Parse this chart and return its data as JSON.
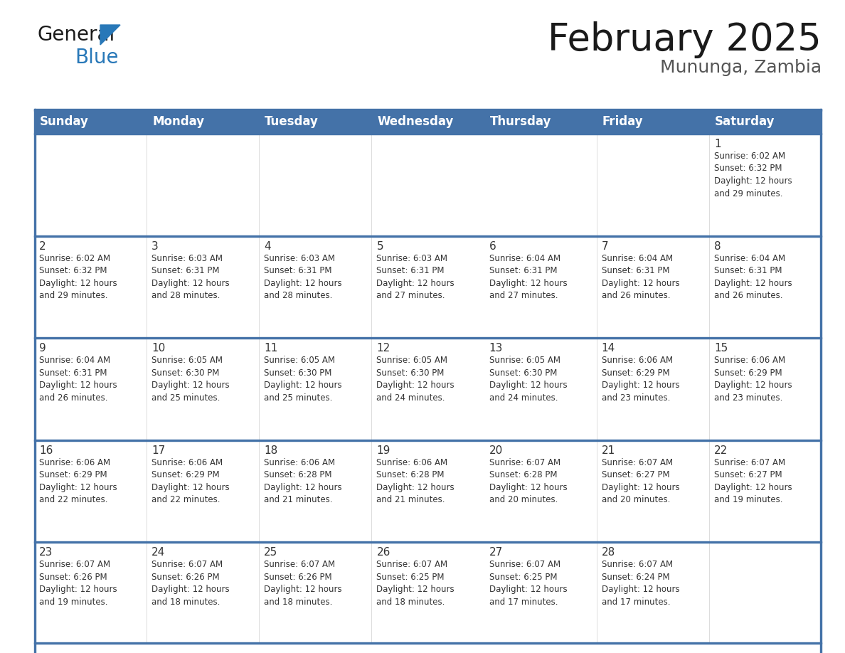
{
  "title": "February 2025",
  "subtitle": "Mununga, Zambia",
  "header_bg": "#4472A8",
  "header_text_color": "#FFFFFF",
  "cell_bg": "#FFFFFF",
  "row_sep_color": "#4472A8",
  "col_sep_color": "#CCCCCC",
  "text_color": "#333333",
  "days_of_week": [
    "Sunday",
    "Monday",
    "Tuesday",
    "Wednesday",
    "Thursday",
    "Friday",
    "Saturday"
  ],
  "calendar_data": [
    [
      null,
      null,
      null,
      null,
      null,
      null,
      {
        "day": "1",
        "sunrise": "6:02 AM",
        "sunset": "6:32 PM",
        "daylight": "12 hours\nand 29 minutes."
      }
    ],
    [
      {
        "day": "2",
        "sunrise": "6:02 AM",
        "sunset": "6:32 PM",
        "daylight": "12 hours\nand 29 minutes."
      },
      {
        "day": "3",
        "sunrise": "6:03 AM",
        "sunset": "6:31 PM",
        "daylight": "12 hours\nand 28 minutes."
      },
      {
        "day": "4",
        "sunrise": "6:03 AM",
        "sunset": "6:31 PM",
        "daylight": "12 hours\nand 28 minutes."
      },
      {
        "day": "5",
        "sunrise": "6:03 AM",
        "sunset": "6:31 PM",
        "daylight": "12 hours\nand 27 minutes."
      },
      {
        "day": "6",
        "sunrise": "6:04 AM",
        "sunset": "6:31 PM",
        "daylight": "12 hours\nand 27 minutes."
      },
      {
        "day": "7",
        "sunrise": "6:04 AM",
        "sunset": "6:31 PM",
        "daylight": "12 hours\nand 26 minutes."
      },
      {
        "day": "8",
        "sunrise": "6:04 AM",
        "sunset": "6:31 PM",
        "daylight": "12 hours\nand 26 minutes."
      }
    ],
    [
      {
        "day": "9",
        "sunrise": "6:04 AM",
        "sunset": "6:31 PM",
        "daylight": "12 hours\nand 26 minutes."
      },
      {
        "day": "10",
        "sunrise": "6:05 AM",
        "sunset": "6:30 PM",
        "daylight": "12 hours\nand 25 minutes."
      },
      {
        "day": "11",
        "sunrise": "6:05 AM",
        "sunset": "6:30 PM",
        "daylight": "12 hours\nand 25 minutes."
      },
      {
        "day": "12",
        "sunrise": "6:05 AM",
        "sunset": "6:30 PM",
        "daylight": "12 hours\nand 24 minutes."
      },
      {
        "day": "13",
        "sunrise": "6:05 AM",
        "sunset": "6:30 PM",
        "daylight": "12 hours\nand 24 minutes."
      },
      {
        "day": "14",
        "sunrise": "6:06 AM",
        "sunset": "6:29 PM",
        "daylight": "12 hours\nand 23 minutes."
      },
      {
        "day": "15",
        "sunrise": "6:06 AM",
        "sunset": "6:29 PM",
        "daylight": "12 hours\nand 23 minutes."
      }
    ],
    [
      {
        "day": "16",
        "sunrise": "6:06 AM",
        "sunset": "6:29 PM",
        "daylight": "12 hours\nand 22 minutes."
      },
      {
        "day": "17",
        "sunrise": "6:06 AM",
        "sunset": "6:29 PM",
        "daylight": "12 hours\nand 22 minutes."
      },
      {
        "day": "18",
        "sunrise": "6:06 AM",
        "sunset": "6:28 PM",
        "daylight": "12 hours\nand 21 minutes."
      },
      {
        "day": "19",
        "sunrise": "6:06 AM",
        "sunset": "6:28 PM",
        "daylight": "12 hours\nand 21 minutes."
      },
      {
        "day": "20",
        "sunrise": "6:07 AM",
        "sunset": "6:28 PM",
        "daylight": "12 hours\nand 20 minutes."
      },
      {
        "day": "21",
        "sunrise": "6:07 AM",
        "sunset": "6:27 PM",
        "daylight": "12 hours\nand 20 minutes."
      },
      {
        "day": "22",
        "sunrise": "6:07 AM",
        "sunset": "6:27 PM",
        "daylight": "12 hours\nand 19 minutes."
      }
    ],
    [
      {
        "day": "23",
        "sunrise": "6:07 AM",
        "sunset": "6:26 PM",
        "daylight": "12 hours\nand 19 minutes."
      },
      {
        "day": "24",
        "sunrise": "6:07 AM",
        "sunset": "6:26 PM",
        "daylight": "12 hours\nand 18 minutes."
      },
      {
        "day": "25",
        "sunrise": "6:07 AM",
        "sunset": "6:26 PM",
        "daylight": "12 hours\nand 18 minutes."
      },
      {
        "day": "26",
        "sunrise": "6:07 AM",
        "sunset": "6:25 PM",
        "daylight": "12 hours\nand 18 minutes."
      },
      {
        "day": "27",
        "sunrise": "6:07 AM",
        "sunset": "6:25 PM",
        "daylight": "12 hours\nand 17 minutes."
      },
      {
        "day": "28",
        "sunrise": "6:07 AM",
        "sunset": "6:24 PM",
        "daylight": "12 hours\nand 17 minutes."
      },
      null
    ]
  ],
  "title_fontsize": 38,
  "subtitle_fontsize": 18,
  "header_fontsize": 12,
  "day_num_fontsize": 11,
  "info_fontsize": 8.5
}
